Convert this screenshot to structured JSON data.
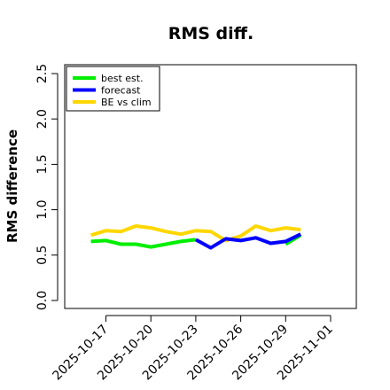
{
  "chart_data": {
    "type": "line",
    "title": "RMS diff.",
    "xlabel": "",
    "ylabel": "RMS difference",
    "ylim": [
      0,
      2.5
    ],
    "yticks": [
      "0.0",
      "0.5",
      "1.0",
      "1.5",
      "2.0",
      "2.5"
    ],
    "xticks": [
      {
        "label": "2025-10-17",
        "color": "#000000"
      },
      {
        "label": "2025-10-20",
        "color": "#000000"
      },
      {
        "label": "2025-10-23",
        "color": "#228b22"
      },
      {
        "label": "2025-10-26",
        "color": "#000000"
      },
      {
        "label": "2025-10-29",
        "color": "#000000"
      },
      {
        "label": "2025-11-01",
        "color": "#000000"
      }
    ],
    "x": [
      "2025-10-16",
      "2025-10-17",
      "2025-10-18",
      "2025-10-19",
      "2025-10-20",
      "2025-10-21",
      "2025-10-22",
      "2025-10-23",
      "2025-10-24",
      "2025-10-25",
      "2025-10-26",
      "2025-10-27",
      "2025-10-28",
      "2025-10-29",
      "2025-10-30"
    ],
    "series": [
      {
        "name": "best est.",
        "color": "#00ee00",
        "values": [
          0.65,
          0.66,
          0.62,
          0.62,
          0.59,
          0.62,
          0.65,
          0.67,
          null,
          null,
          null,
          null,
          null,
          0.62,
          0.72
        ]
      },
      {
        "name": "forecast",
        "color": "#0000ff",
        "values": [
          null,
          null,
          null,
          null,
          null,
          null,
          null,
          0.67,
          0.58,
          0.68,
          0.66,
          0.69,
          0.63,
          0.65,
          0.73
        ]
      },
      {
        "name": "BE vs clim",
        "color": "#ffd700",
        "values": [
          0.72,
          0.77,
          0.76,
          0.82,
          0.8,
          0.76,
          0.73,
          0.77,
          0.76,
          0.66,
          0.71,
          0.82,
          0.77,
          0.8,
          0.78
        ]
      }
    ],
    "legend": "top-left",
    "grid": false
  }
}
